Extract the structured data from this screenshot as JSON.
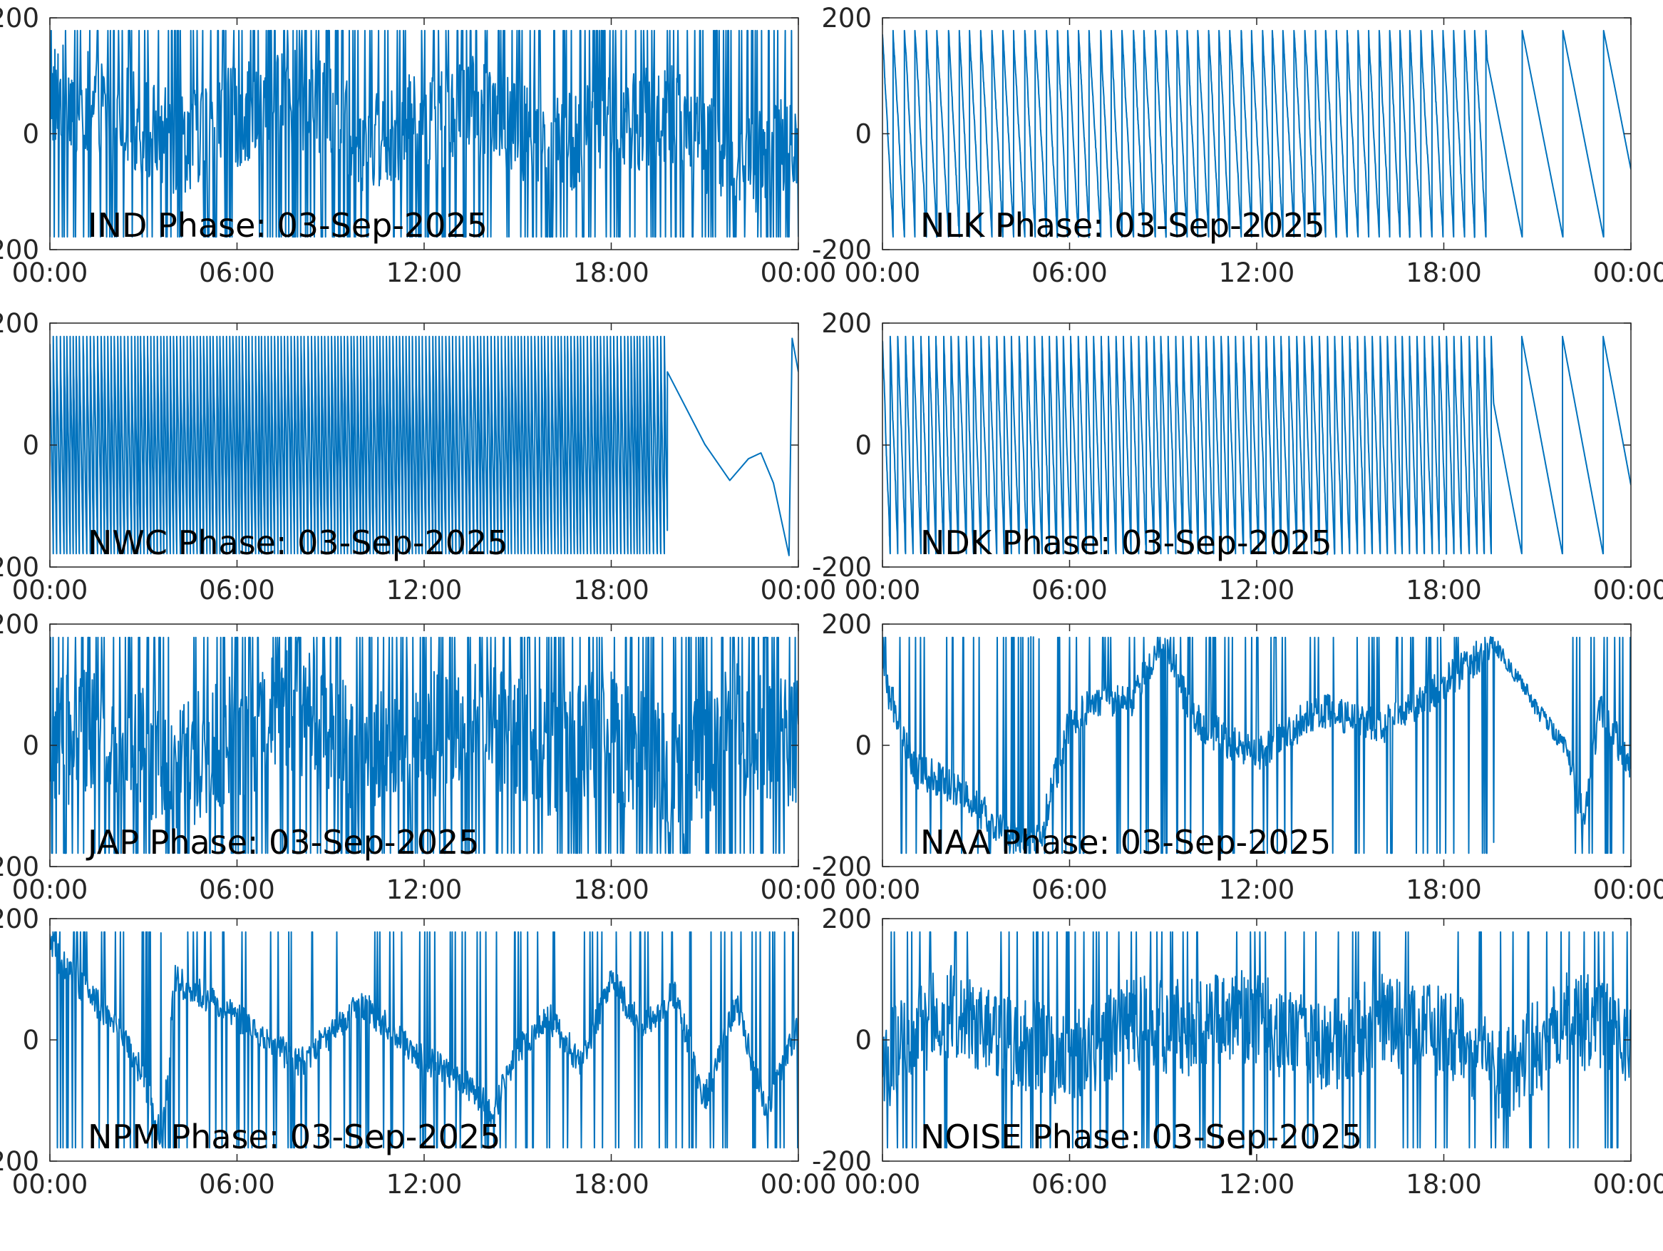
{
  "chart_data": [
    {
      "type": "line",
      "title": "IND Phase: 03-Sep-2025",
      "xlabel": "",
      "ylabel": "",
      "x_ticks": [
        "00:00",
        "06:00",
        "12:00",
        "18:00",
        "00:00"
      ],
      "y_ticks": [
        "-200",
        "0",
        "200"
      ],
      "ylim": [
        -200,
        200
      ],
      "grid": false,
      "line_color": "#0072BD",
      "series": [
        {
          "style": "noisy",
          "x_hours": [
            0,
            2,
            4,
            6,
            8,
            10,
            12,
            14,
            16,
            18,
            20,
            22,
            24
          ],
          "values": [
            70,
            40,
            -20,
            30,
            60,
            -10,
            20,
            50,
            -30,
            10,
            40,
            -60,
            -20
          ],
          "noise": 90,
          "wrap_density": 0.85
        }
      ]
    },
    {
      "type": "line",
      "title": "NLK Phase: 03-Sep-2025",
      "xlabel": "",
      "ylabel": "",
      "x_ticks": [
        "00:00",
        "06:00",
        "12:00",
        "18:00",
        "00:00"
      ],
      "y_ticks": [
        "-200",
        "0",
        "200"
      ],
      "ylim": [
        -200,
        200
      ],
      "grid": false,
      "line_color": "#0072BD",
      "series": [
        {
          "style": "sawtooth",
          "cutover_hour": 19.4,
          "dense_period_hours": 0.38,
          "sparse_period_hours": 1.3,
          "slope_sign": -1
        }
      ]
    },
    {
      "type": "line",
      "title": "NWC Phase: 03-Sep-2025",
      "xlabel": "",
      "ylabel": "",
      "x_ticks": [
        "00:00",
        "06:00",
        "12:00",
        "18:00",
        "00:00"
      ],
      "y_ticks": [
        "-200",
        "0",
        "200"
      ],
      "ylim": [
        -200,
        200
      ],
      "grid": false,
      "line_color": "#0072BD",
      "series": [
        {
          "style": "dense-then-drift",
          "cutover_hour": 19.8,
          "dense_period_hours": 0.12,
          "tail_points": [
            [
              19.8,
              120
            ],
            [
              21.0,
              0
            ],
            [
              21.8,
              -60
            ],
            [
              22.4,
              -20
            ],
            [
              22.8,
              -10
            ],
            [
              23.2,
              -60
            ],
            [
              23.7,
              -180
            ],
            [
              23.8,
              175
            ],
            [
              24,
              120
            ]
          ]
        }
      ]
    },
    {
      "type": "line",
      "title": "NDK Phase: 03-Sep-2025",
      "xlabel": "",
      "ylabel": "",
      "x_ticks": [
        "00:00",
        "06:00",
        "12:00",
        "18:00",
        "00:00"
      ],
      "y_ticks": [
        "-200",
        "0",
        "200"
      ],
      "ylim": [
        -200,
        200
      ],
      "grid": false,
      "line_color": "#0072BD",
      "series": [
        {
          "style": "sawtooth",
          "cutover_hour": 19.6,
          "dense_period_hours": 0.26,
          "sparse_period_hours": 1.3,
          "slope_sign": -1
        }
      ]
    },
    {
      "type": "line",
      "title": "JAP Phase: 03-Sep-2025",
      "xlabel": "",
      "ylabel": "",
      "x_ticks": [
        "00:00",
        "06:00",
        "12:00",
        "18:00",
        "00:00"
      ],
      "y_ticks": [
        "-200",
        "0",
        "200"
      ],
      "ylim": [
        -200,
        200
      ],
      "grid": false,
      "line_color": "#0072BD",
      "series": [
        {
          "style": "noisy",
          "x_hours": [
            0,
            2,
            4,
            6,
            8,
            10,
            12,
            14,
            16,
            18,
            20,
            22,
            24
          ],
          "values": [
            0,
            30,
            -40,
            20,
            60,
            -20,
            10,
            40,
            -10,
            20,
            -50,
            30,
            0
          ],
          "noise": 110,
          "wrap_density": 1.0
        }
      ]
    },
    {
      "type": "line",
      "title": "NAA Phase: 03-Sep-2025",
      "xlabel": "",
      "ylabel": "",
      "x_ticks": [
        "00:00",
        "06:00",
        "12:00",
        "18:00",
        "00:00"
      ],
      "y_ticks": [
        "-200",
        "0",
        "200"
      ],
      "ylim": [
        -200,
        200
      ],
      "grid": false,
      "line_color": "#0072BD",
      "series": [
        {
          "style": "noisy",
          "x_hours": [
            0,
            1,
            2,
            3,
            4,
            5,
            6,
            7,
            8,
            9,
            10,
            12,
            14,
            16,
            18,
            19.6,
            20,
            21,
            22,
            22.5,
            23,
            24
          ],
          "values": [
            120,
            -40,
            -60,
            -100,
            -150,
            -160,
            40,
            80,
            70,
            180,
            40,
            -20,
            60,
            30,
            100,
            170,
            140,
            60,
            -10,
            -130,
            70,
            -40
          ],
          "noise": 30,
          "wrap_density": 0.55,
          "quiet_after_hour": 19.6
        }
      ]
    },
    {
      "type": "line",
      "title": "NPM Phase: 03-Sep-2025",
      "xlabel": "",
      "ylabel": "",
      "x_ticks": [
        "00:00",
        "06:00",
        "12:00",
        "18:00",
        "00:00"
      ],
      "y_ticks": [
        "-200",
        "0",
        "200"
      ],
      "ylim": [
        -200,
        200
      ],
      "grid": false,
      "line_color": "#0072BD",
      "series": [
        {
          "style": "drift-wrapped",
          "x_hours": [
            0,
            1,
            2,
            3,
            3.6,
            4,
            6,
            8,
            10,
            12,
            13.5,
            14.2,
            15,
            16,
            17,
            18,
            19,
            20,
            21,
            22,
            23,
            24
          ],
          "values": [
            150,
            90,
            30,
            -60,
            -170,
            100,
            40,
            -40,
            60,
            -30,
            -80,
            -120,
            -20,
            40,
            -40,
            100,
            20,
            80,
            -100,
            60,
            -120,
            30
          ],
          "noise": 25,
          "wrap_density": 0.5
        }
      ]
    },
    {
      "type": "line",
      "title": "NOISE Phase: 03-Sep-2025",
      "xlabel": "",
      "ylabel": "",
      "x_ticks": [
        "00:00",
        "06:00",
        "12:00",
        "18:00",
        "00:00"
      ],
      "y_ticks": [
        "-200",
        "0",
        "200"
      ],
      "ylim": [
        -200,
        200
      ],
      "grid": false,
      "line_color": "#0072BD",
      "series": [
        {
          "style": "noisy",
          "x_hours": [
            0,
            2,
            4,
            6,
            8,
            10,
            12,
            14,
            16,
            18,
            20,
            22,
            24
          ],
          "values": [
            -40,
            50,
            10,
            -40,
            30,
            20,
            40,
            -20,
            30,
            10,
            -60,
            40,
            0
          ],
          "noise": 80,
          "wrap_density": 0.35
        }
      ]
    }
  ]
}
